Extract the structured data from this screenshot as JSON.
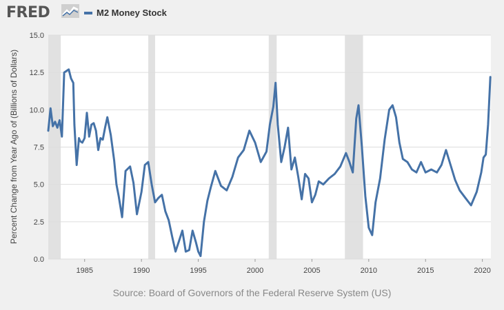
{
  "header": {
    "logo_text": "FRED",
    "legend_label": "M2 Money Stock"
  },
  "source": "Source: Board of Governors of the Federal Reserve System (US)",
  "colors": {
    "series": "#4572a7",
    "plot_bg": "#ffffff",
    "recession": "#e1e1e1",
    "grid": "#dddddd",
    "logo": "#555555"
  },
  "chart_data": {
    "type": "line",
    "ylabel": "Percent Change from Year Ago of (Billions of Dollars)",
    "xlim": [
      1981.8,
      2020.75
    ],
    "ylim": [
      0,
      15
    ],
    "x_ticks": [
      1985,
      1990,
      1995,
      2000,
      2005,
      2010,
      2015,
      2020
    ],
    "y_ticks": [
      "0.0",
      "2.5",
      "5.0",
      "7.5",
      "10.0",
      "12.5",
      "15.0"
    ],
    "grid": "horizontal",
    "recessions": [
      [
        1981.6,
        1982.9
      ],
      [
        1990.6,
        1991.2
      ],
      [
        2001.2,
        2001.9
      ],
      [
        2007.9,
        2009.5
      ]
    ],
    "series": [
      {
        "name": "M2 Money Stock",
        "x": [
          1981.8,
          1982.0,
          1982.2,
          1982.4,
          1982.6,
          1982.8,
          1983.0,
          1983.2,
          1983.4,
          1983.6,
          1983.8,
          1984.0,
          1984.1,
          1984.3,
          1984.5,
          1984.6,
          1984.8,
          1985.0,
          1985.2,
          1985.4,
          1985.6,
          1985.8,
          1986.0,
          1986.2,
          1986.4,
          1986.6,
          1986.8,
          1987.0,
          1987.3,
          1987.6,
          1987.8,
          1988.0,
          1988.3,
          1988.6,
          1989.0,
          1989.3,
          1989.6,
          1990.0,
          1990.3,
          1990.6,
          1990.9,
          1991.2,
          1991.5,
          1991.8,
          1992.1,
          1992.4,
          1992.7,
          1993.0,
          1993.3,
          1993.6,
          1993.9,
          1994.2,
          1994.5,
          1994.8,
          1995.0,
          1995.2,
          1995.5,
          1995.8,
          1996.1,
          1996.5,
          1997.0,
          1997.5,
          1998.0,
          1998.5,
          1999.0,
          1999.5,
          2000.0,
          2000.5,
          2001.0,
          2001.3,
          2001.6,
          2001.8,
          2002.0,
          2002.3,
          2002.6,
          2002.9,
          2003.2,
          2003.5,
          2003.8,
          2004.1,
          2004.4,
          2004.7,
          2005.0,
          2005.3,
          2005.6,
          2006.0,
          2006.5,
          2007.0,
          2007.5,
          2008.0,
          2008.3,
          2008.6,
          2008.9,
          2009.1,
          2009.4,
          2009.7,
          2010.0,
          2010.3,
          2010.6,
          2011.0,
          2011.4,
          2011.8,
          2012.1,
          2012.4,
          2012.7,
          2013.0,
          2013.4,
          2013.8,
          2014.2,
          2014.6,
          2015.0,
          2015.5,
          2016.0,
          2016.4,
          2016.8,
          2017.2,
          2017.6,
          2018.0,
          2018.5,
          2019.0,
          2019.5,
          2019.9,
          2020.1,
          2020.3,
          2020.5,
          2020.7
        ],
        "values": [
          8.6,
          10.1,
          8.9,
          9.2,
          8.8,
          9.3,
          8.2,
          12.5,
          12.6,
          12.7,
          12.1,
          11.8,
          9.0,
          6.3,
          8.1,
          7.9,
          7.8,
          8.1,
          9.8,
          8.2,
          9.0,
          9.1,
          8.6,
          7.3,
          8.1,
          8.0,
          8.8,
          9.5,
          8.3,
          6.6,
          5.0,
          4.2,
          2.8,
          5.9,
          6.2,
          5.1,
          3.0,
          4.5,
          6.3,
          6.5,
          5.0,
          3.8,
          4.1,
          4.3,
          3.2,
          2.6,
          1.5,
          0.5,
          1.2,
          1.9,
          0.5,
          0.6,
          1.9,
          1.1,
          0.5,
          0.2,
          2.5,
          3.9,
          4.8,
          5.9,
          4.9,
          4.6,
          5.5,
          6.8,
          7.3,
          8.6,
          7.8,
          6.5,
          7.2,
          9.0,
          10.2,
          11.8,
          9.0,
          6.5,
          7.5,
          8.8,
          6.0,
          6.8,
          5.5,
          4.0,
          5.7,
          5.4,
          3.8,
          4.3,
          5.2,
          5.0,
          5.4,
          5.7,
          6.2,
          7.1,
          6.5,
          5.8,
          9.4,
          10.3,
          7.5,
          4.2,
          2.1,
          1.6,
          3.8,
          5.4,
          8.0,
          10.0,
          10.3,
          9.5,
          7.8,
          6.7,
          6.5,
          6.0,
          5.8,
          6.5,
          5.8,
          6.0,
          5.8,
          6.3,
          7.3,
          6.3,
          5.3,
          4.6,
          4.1,
          3.6,
          4.5,
          5.8,
          6.8,
          7.0,
          9.0,
          12.2
        ]
      }
    ]
  }
}
